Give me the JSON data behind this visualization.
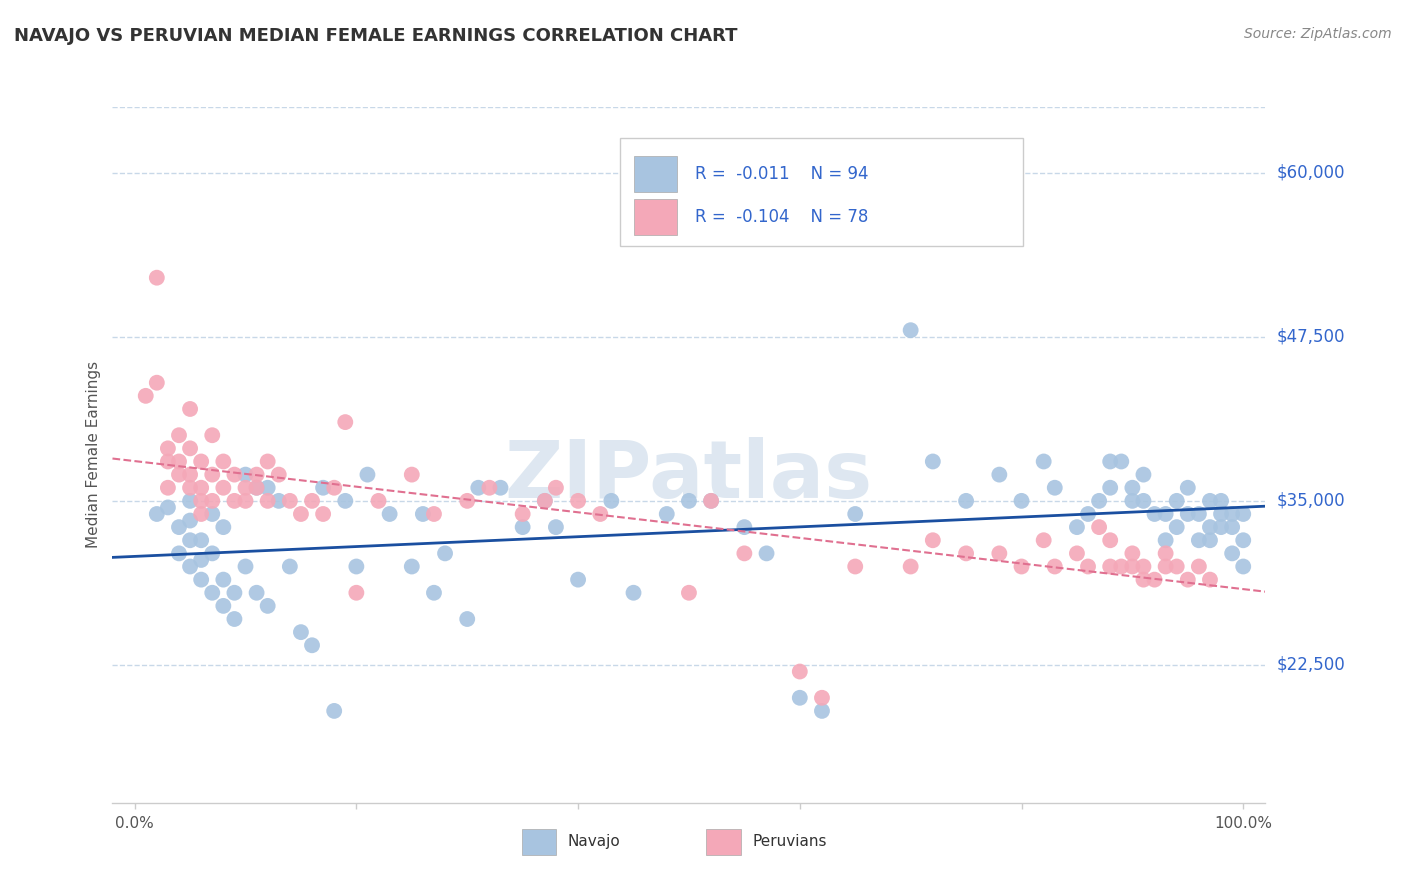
{
  "title": "NAVAJO VS PERUVIAN MEDIAN FEMALE EARNINGS CORRELATION CHART",
  "source": "Source: ZipAtlas.com",
  "ylabel": "Median Female Earnings",
  "ylim": [
    12000,
    65000
  ],
  "xlim": [
    -0.02,
    1.02
  ],
  "navajo_R": -0.011,
  "navajo_N": 94,
  "peruvian_R": -0.104,
  "peruvian_N": 78,
  "navajo_color": "#a8c4e0",
  "peruvian_color": "#f4a8b8",
  "navajo_line_color": "#1a4fa0",
  "peruvian_line_color": "#e07090",
  "grid_color": "#c8d8e8",
  "background_color": "#ffffff",
  "watermark": "ZIPatlas",
  "watermark_color": "#c8d8e8",
  "legend_label_1": "Navajo",
  "legend_label_2": "Peruvians",
  "ytick_vals": [
    22500,
    35000,
    47500,
    60000
  ],
  "ytick_labels": [
    "$22,500",
    "$35,000",
    "$47,500",
    "$60,000"
  ],
  "navajo_x": [
    0.02,
    0.03,
    0.04,
    0.04,
    0.05,
    0.05,
    0.05,
    0.05,
    0.06,
    0.06,
    0.06,
    0.07,
    0.07,
    0.07,
    0.08,
    0.08,
    0.08,
    0.09,
    0.09,
    0.1,
    0.1,
    0.11,
    0.11,
    0.12,
    0.12,
    0.13,
    0.14,
    0.15,
    0.16,
    0.17,
    0.18,
    0.19,
    0.2,
    0.21,
    0.23,
    0.25,
    0.26,
    0.27,
    0.28,
    0.3,
    0.31,
    0.33,
    0.35,
    0.37,
    0.38,
    0.4,
    0.43,
    0.45,
    0.48,
    0.5,
    0.52,
    0.55,
    0.57,
    0.6,
    0.62,
    0.65,
    0.7,
    0.72,
    0.75,
    0.78,
    0.8,
    0.82,
    0.83,
    0.85,
    0.86,
    0.87,
    0.88,
    0.88,
    0.89,
    0.9,
    0.9,
    0.91,
    0.91,
    0.92,
    0.93,
    0.93,
    0.94,
    0.94,
    0.95,
    0.95,
    0.96,
    0.96,
    0.97,
    0.97,
    0.97,
    0.98,
    0.98,
    0.98,
    0.99,
    0.99,
    0.99,
    1.0,
    1.0,
    1.0
  ],
  "navajo_y": [
    34000,
    34500,
    33000,
    31000,
    30000,
    32000,
    33500,
    35000,
    29000,
    30500,
    32000,
    28000,
    31000,
    34000,
    27000,
    29000,
    33000,
    26000,
    28000,
    30000,
    37000,
    36000,
    28000,
    27000,
    36000,
    35000,
    30000,
    25000,
    24000,
    36000,
    19000,
    35000,
    30000,
    37000,
    34000,
    30000,
    34000,
    28000,
    31000,
    26000,
    36000,
    36000,
    33000,
    35000,
    33000,
    29000,
    35000,
    28000,
    34000,
    35000,
    35000,
    33000,
    31000,
    20000,
    19000,
    34000,
    48000,
    38000,
    35000,
    37000,
    35000,
    38000,
    36000,
    33000,
    34000,
    35000,
    38000,
    36000,
    38000,
    35000,
    36000,
    35000,
    37000,
    34000,
    34000,
    32000,
    33000,
    35000,
    34000,
    36000,
    32000,
    34000,
    33000,
    35000,
    32000,
    34000,
    33000,
    35000,
    31000,
    33000,
    34000,
    30000,
    32000,
    34000
  ],
  "peruvian_x": [
    0.01,
    0.02,
    0.02,
    0.03,
    0.03,
    0.03,
    0.04,
    0.04,
    0.04,
    0.05,
    0.05,
    0.05,
    0.05,
    0.06,
    0.06,
    0.06,
    0.06,
    0.07,
    0.07,
    0.07,
    0.08,
    0.08,
    0.09,
    0.09,
    0.1,
    0.1,
    0.11,
    0.11,
    0.12,
    0.12,
    0.13,
    0.14,
    0.15,
    0.16,
    0.17,
    0.18,
    0.19,
    0.2,
    0.22,
    0.25,
    0.27,
    0.3,
    0.32,
    0.35,
    0.37,
    0.38,
    0.4,
    0.42,
    0.5,
    0.52,
    0.55,
    0.6,
    0.62,
    0.65,
    0.7,
    0.72,
    0.75,
    0.78,
    0.8,
    0.82,
    0.83,
    0.85,
    0.86,
    0.87,
    0.88,
    0.88,
    0.89,
    0.9,
    0.9,
    0.91,
    0.91,
    0.92,
    0.93,
    0.93,
    0.94,
    0.95,
    0.96,
    0.97
  ],
  "peruvian_y": [
    43000,
    52000,
    44000,
    36000,
    38000,
    39000,
    40000,
    38000,
    37000,
    42000,
    39000,
    36000,
    37000,
    38000,
    35000,
    36000,
    34000,
    40000,
    37000,
    35000,
    36000,
    38000,
    35000,
    37000,
    35000,
    36000,
    37000,
    36000,
    38000,
    35000,
    37000,
    35000,
    34000,
    35000,
    34000,
    36000,
    41000,
    28000,
    35000,
    37000,
    34000,
    35000,
    36000,
    34000,
    35000,
    36000,
    35000,
    34000,
    28000,
    35000,
    31000,
    22000,
    20000,
    30000,
    30000,
    32000,
    31000,
    31000,
    30000,
    32000,
    30000,
    31000,
    30000,
    33000,
    30000,
    32000,
    30000,
    30000,
    31000,
    30000,
    29000,
    29000,
    31000,
    30000,
    30000,
    29000,
    30000,
    29000
  ]
}
